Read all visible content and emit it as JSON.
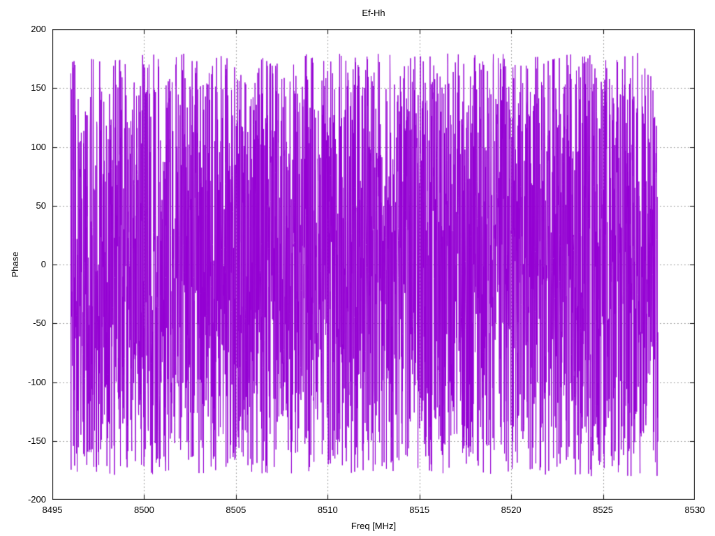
{
  "chart_data": {
    "type": "line",
    "title": "Ef-Hh",
    "xlabel": "Freq [MHz]",
    "ylabel": "Phase",
    "xlim": [
      8495,
      8530
    ],
    "ylim": [
      -200,
      200
    ],
    "xticks": [
      8495,
      8500,
      8505,
      8510,
      8515,
      8520,
      8525,
      8530
    ],
    "yticks": [
      200,
      150,
      100,
      50,
      0,
      -50,
      -100,
      -150,
      -200
    ],
    "grid": true,
    "grid_style": "dotted",
    "ticks": "inward-mirrored",
    "legend_position": "none",
    "background": "#ffffff",
    "border_color": "#000000",
    "grid_color": "#a0a0a0",
    "text_color": "#000000",
    "series": [
      {
        "name": "Ef-Hh",
        "style": "lines",
        "color": "#9400d3",
        "x_start": 8496,
        "x_end": 8528,
        "n_points": 3000,
        "y_model": "uniform_random_wrapped_phase_deg",
        "y_range": [
          -180,
          180
        ],
        "seed": 987654321
      }
    ]
  }
}
